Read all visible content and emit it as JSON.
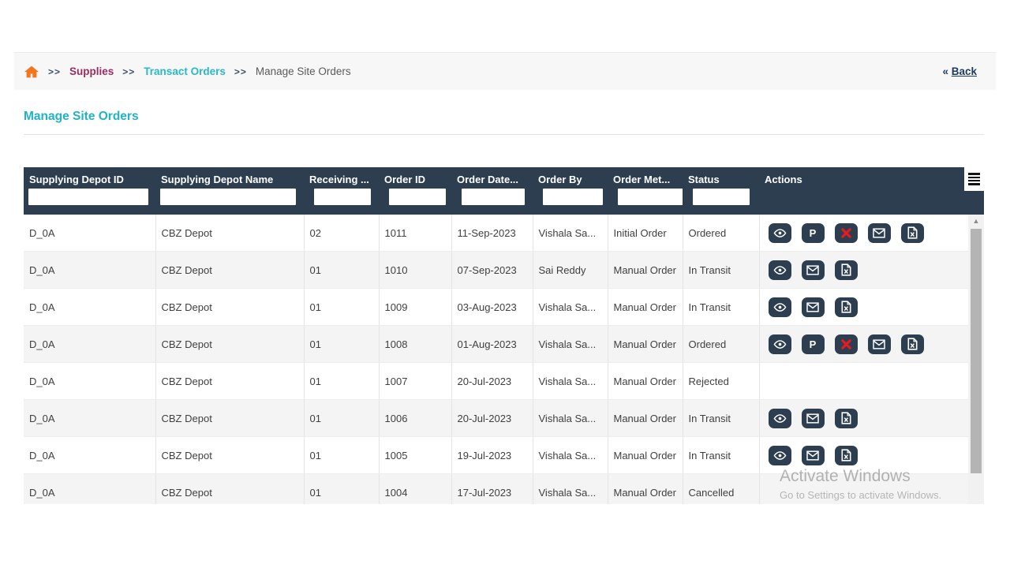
{
  "breadcrumb": {
    "separator": ">>",
    "items": [
      {
        "label": "Supplies"
      },
      {
        "label": "Transact Orders"
      },
      {
        "label": "Manage Site Orders"
      }
    ],
    "back": {
      "chevrons": "«",
      "label": "Back"
    }
  },
  "page": {
    "title": "Manage Site Orders"
  },
  "table": {
    "columns": [
      {
        "label": "Supplying Depot ID",
        "filter_value": ""
      },
      {
        "label": "Supplying Depot Name",
        "filter_value": ""
      },
      {
        "label": "Receiving ...",
        "filter_value": ""
      },
      {
        "label": "Order ID",
        "filter_value": ""
      },
      {
        "label": "Order Date...",
        "filter_value": ""
      },
      {
        "label": "Order By",
        "filter_value": ""
      },
      {
        "label": "Order Met...",
        "filter_value": ""
      },
      {
        "label": "Status",
        "filter_value": ""
      },
      {
        "label": "Actions"
      }
    ],
    "rows": [
      {
        "cells": [
          "D_0A",
          "CBZ Depot",
          "02",
          "1011",
          "11-Sep-2023",
          "Vishala Sa...",
          "Initial Order",
          "Ordered"
        ],
        "actions": [
          "view",
          "p",
          "cancel",
          "mail",
          "excel"
        ]
      },
      {
        "cells": [
          "D_0A",
          "CBZ Depot",
          "01",
          "1010",
          "07-Sep-2023",
          "Sai Reddy",
          "Manual Order",
          "In Transit"
        ],
        "actions": [
          "view",
          "mail",
          "excel"
        ]
      },
      {
        "cells": [
          "D_0A",
          "CBZ Depot",
          "01",
          "1009",
          "03-Aug-2023",
          "Vishala Sa...",
          "Manual Order",
          "In Transit"
        ],
        "actions": [
          "view",
          "mail",
          "excel"
        ]
      },
      {
        "cells": [
          "D_0A",
          "CBZ Depot",
          "01",
          "1008",
          "01-Aug-2023",
          "Vishala Sa...",
          "Manual Order",
          "Ordered"
        ],
        "actions": [
          "view",
          "p",
          "cancel",
          "mail",
          "excel"
        ]
      },
      {
        "cells": [
          "D_0A",
          "CBZ Depot",
          "01",
          "1007",
          "20-Jul-2023",
          "Vishala Sa...",
          "Manual Order",
          "Rejected"
        ],
        "actions": []
      },
      {
        "cells": [
          "D_0A",
          "CBZ Depot",
          "01",
          "1006",
          "20-Jul-2023",
          "Vishala Sa...",
          "Manual Order",
          "In Transit"
        ],
        "actions": [
          "view",
          "mail",
          "excel"
        ]
      },
      {
        "cells": [
          "D_0A",
          "CBZ Depot",
          "01",
          "1005",
          "19-Jul-2023",
          "Vishala Sa...",
          "Manual Order",
          "In Transit"
        ],
        "actions": [
          "view",
          "mail",
          "excel"
        ]
      },
      {
        "cells": [
          "D_0A",
          "CBZ Depot",
          "01",
          "1004",
          "17-Jul-2023",
          "Vishala Sa...",
          "Manual Order",
          "Cancelled"
        ],
        "actions": []
      }
    ],
    "action_p_label": "P"
  },
  "scrollbar": {
    "up_arrow": "▲"
  },
  "watermark": {
    "line1": "Activate Windows",
    "line2": "Go to Settings to activate Windows."
  },
  "colors": {
    "header_bg": "#2c3e50",
    "accent_teal": "#1eb4c6",
    "crumb_maroon": "#9b2c5f",
    "home_orange": "#f4741f",
    "cancel_red": "#e8191f",
    "row_alt_bg": "#f4f4f5",
    "back_navy": "#1c3a5e"
  }
}
